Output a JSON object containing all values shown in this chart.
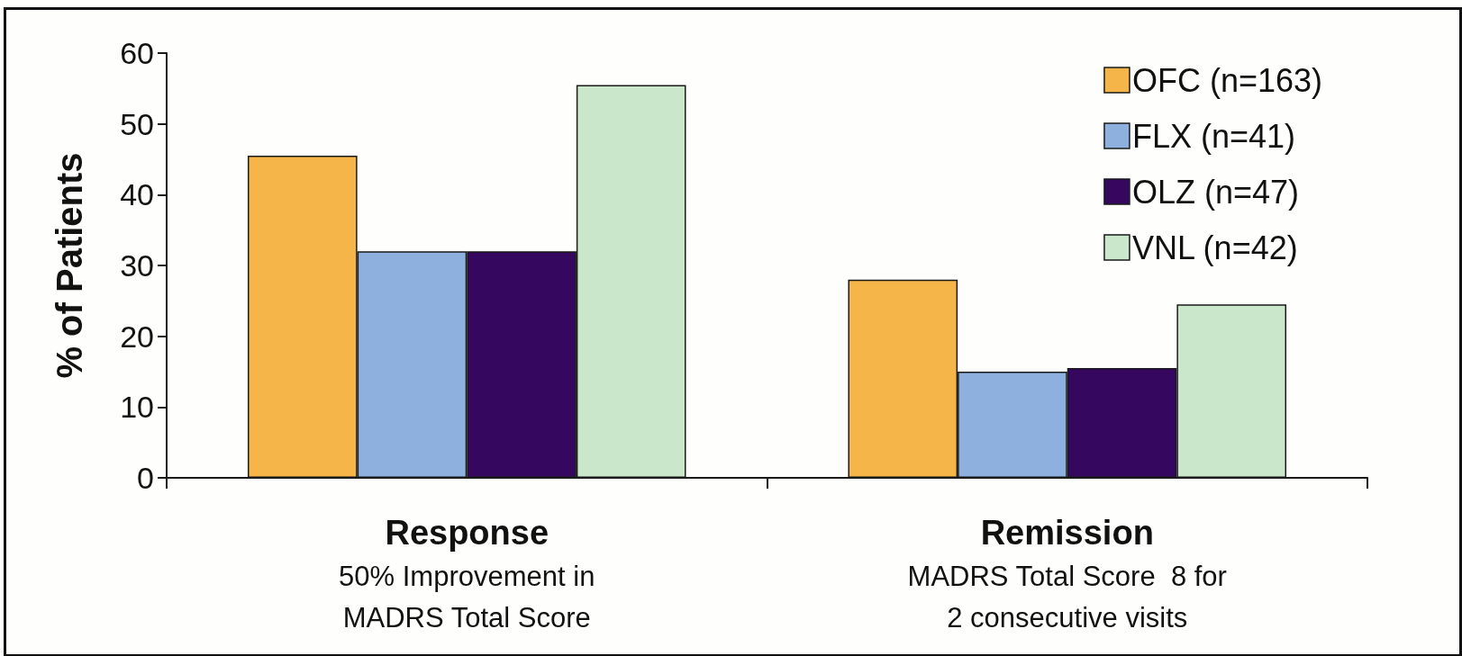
{
  "chart_data": {
    "type": "bar",
    "ylabel": "% of Patients",
    "categories": [
      "Response\n50% Improvement in\nMADRS Total Score",
      "Remission\nMADRS Total Score  8 for\n2 consecutive visits"
    ],
    "series": [
      {
        "name": "OFC (n=163)",
        "color": "#f5b548",
        "values": [
          45.5,
          28
        ]
      },
      {
        "name": "FLX (n=41)",
        "color": "#8db0de",
        "values": [
          32,
          15
        ]
      },
      {
        "name": "OLZ (n=47)",
        "color": "#35075f",
        "values": [
          32,
          15.5
        ]
      },
      {
        "name": "VNL (n=42)",
        "color": "#cbe7cb",
        "values": [
          55.5,
          24.5
        ]
      }
    ],
    "ylim": [
      0,
      60
    ],
    "yticks": [
      0,
      10,
      20,
      30,
      40,
      50,
      60
    ],
    "grid": false,
    "legend": "top right"
  }
}
